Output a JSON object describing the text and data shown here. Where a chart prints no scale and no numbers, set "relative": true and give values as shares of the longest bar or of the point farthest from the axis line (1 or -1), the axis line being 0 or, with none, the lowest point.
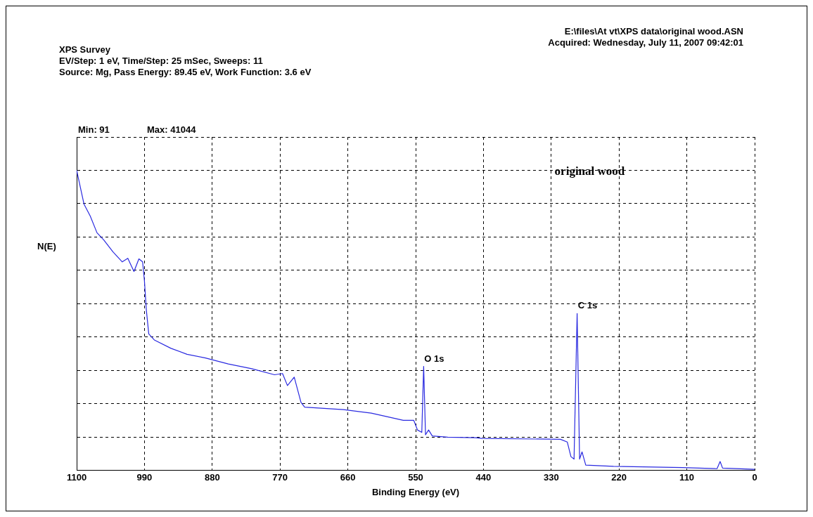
{
  "chart_data": {
    "type": "line",
    "title": "XPS Survey",
    "subtitle": "EV/Step: 1 eV,  Time/Step: 25 mSec,  Sweeps: 11",
    "xlabel": "Binding Energy (eV)",
    "ylabel": "N(E)",
    "relative": true,
    "grid": true,
    "marker": "none",
    "line_style": "solid",
    "xlim": [
      1100,
      0
    ],
    "xticks": [
      1100,
      990,
      880,
      770,
      660,
      550,
      440,
      330,
      220,
      110,
      0
    ],
    "annotations": [
      "E:\\files\\At vt\\XPS data\\original wood.ASN",
      "Acquired:  Wednesday, July 11, 2007 09:42:01",
      "Source: Mg,   Pass Energy: 89.45 eV,   Work Function: 3.6 eV",
      "Min: 91",
      "Max: 41044",
      "original wood",
      {
        "text": "O 1s",
        "x": 537,
        "y": 0.347
      },
      {
        "text": "C 1s",
        "x": 288,
        "y": 0.523
      }
    ],
    "series": [
      {
        "color": "#2a2ae0",
        "x": [
          1100,
          1088,
          1078,
          1067,
          1056,
          1041,
          1026,
          1017,
          1007,
          999,
          993,
          990,
          987,
          983,
          974,
          947,
          921,
          891,
          854,
          816,
          779,
          766,
          758,
          747,
          736,
          730,
          667,
          622,
          570,
          553,
          547,
          540,
          537,
          534,
          529,
          523,
          498,
          453,
          442,
          315,
          304,
          298,
          293,
          288,
          284,
          280,
          274,
          229,
          117,
          61,
          56,
          52,
          0
        ],
        "values": [
          1.0,
          0.887,
          0.848,
          0.792,
          0.768,
          0.728,
          0.695,
          0.707,
          0.663,
          0.705,
          0.695,
          0.631,
          0.536,
          0.455,
          0.435,
          0.407,
          0.387,
          0.375,
          0.355,
          0.339,
          0.319,
          0.323,
          0.283,
          0.311,
          0.227,
          0.211,
          0.203,
          0.191,
          0.167,
          0.167,
          0.135,
          0.127,
          0.347,
          0.119,
          0.135,
          0.115,
          0.111,
          0.109,
          0.107,
          0.104,
          0.095,
          0.046,
          0.038,
          0.523,
          0.038,
          0.062,
          0.018,
          0.014,
          0.01,
          0.006,
          0.03,
          0.008,
          0.004
        ]
      }
    ]
  }
}
